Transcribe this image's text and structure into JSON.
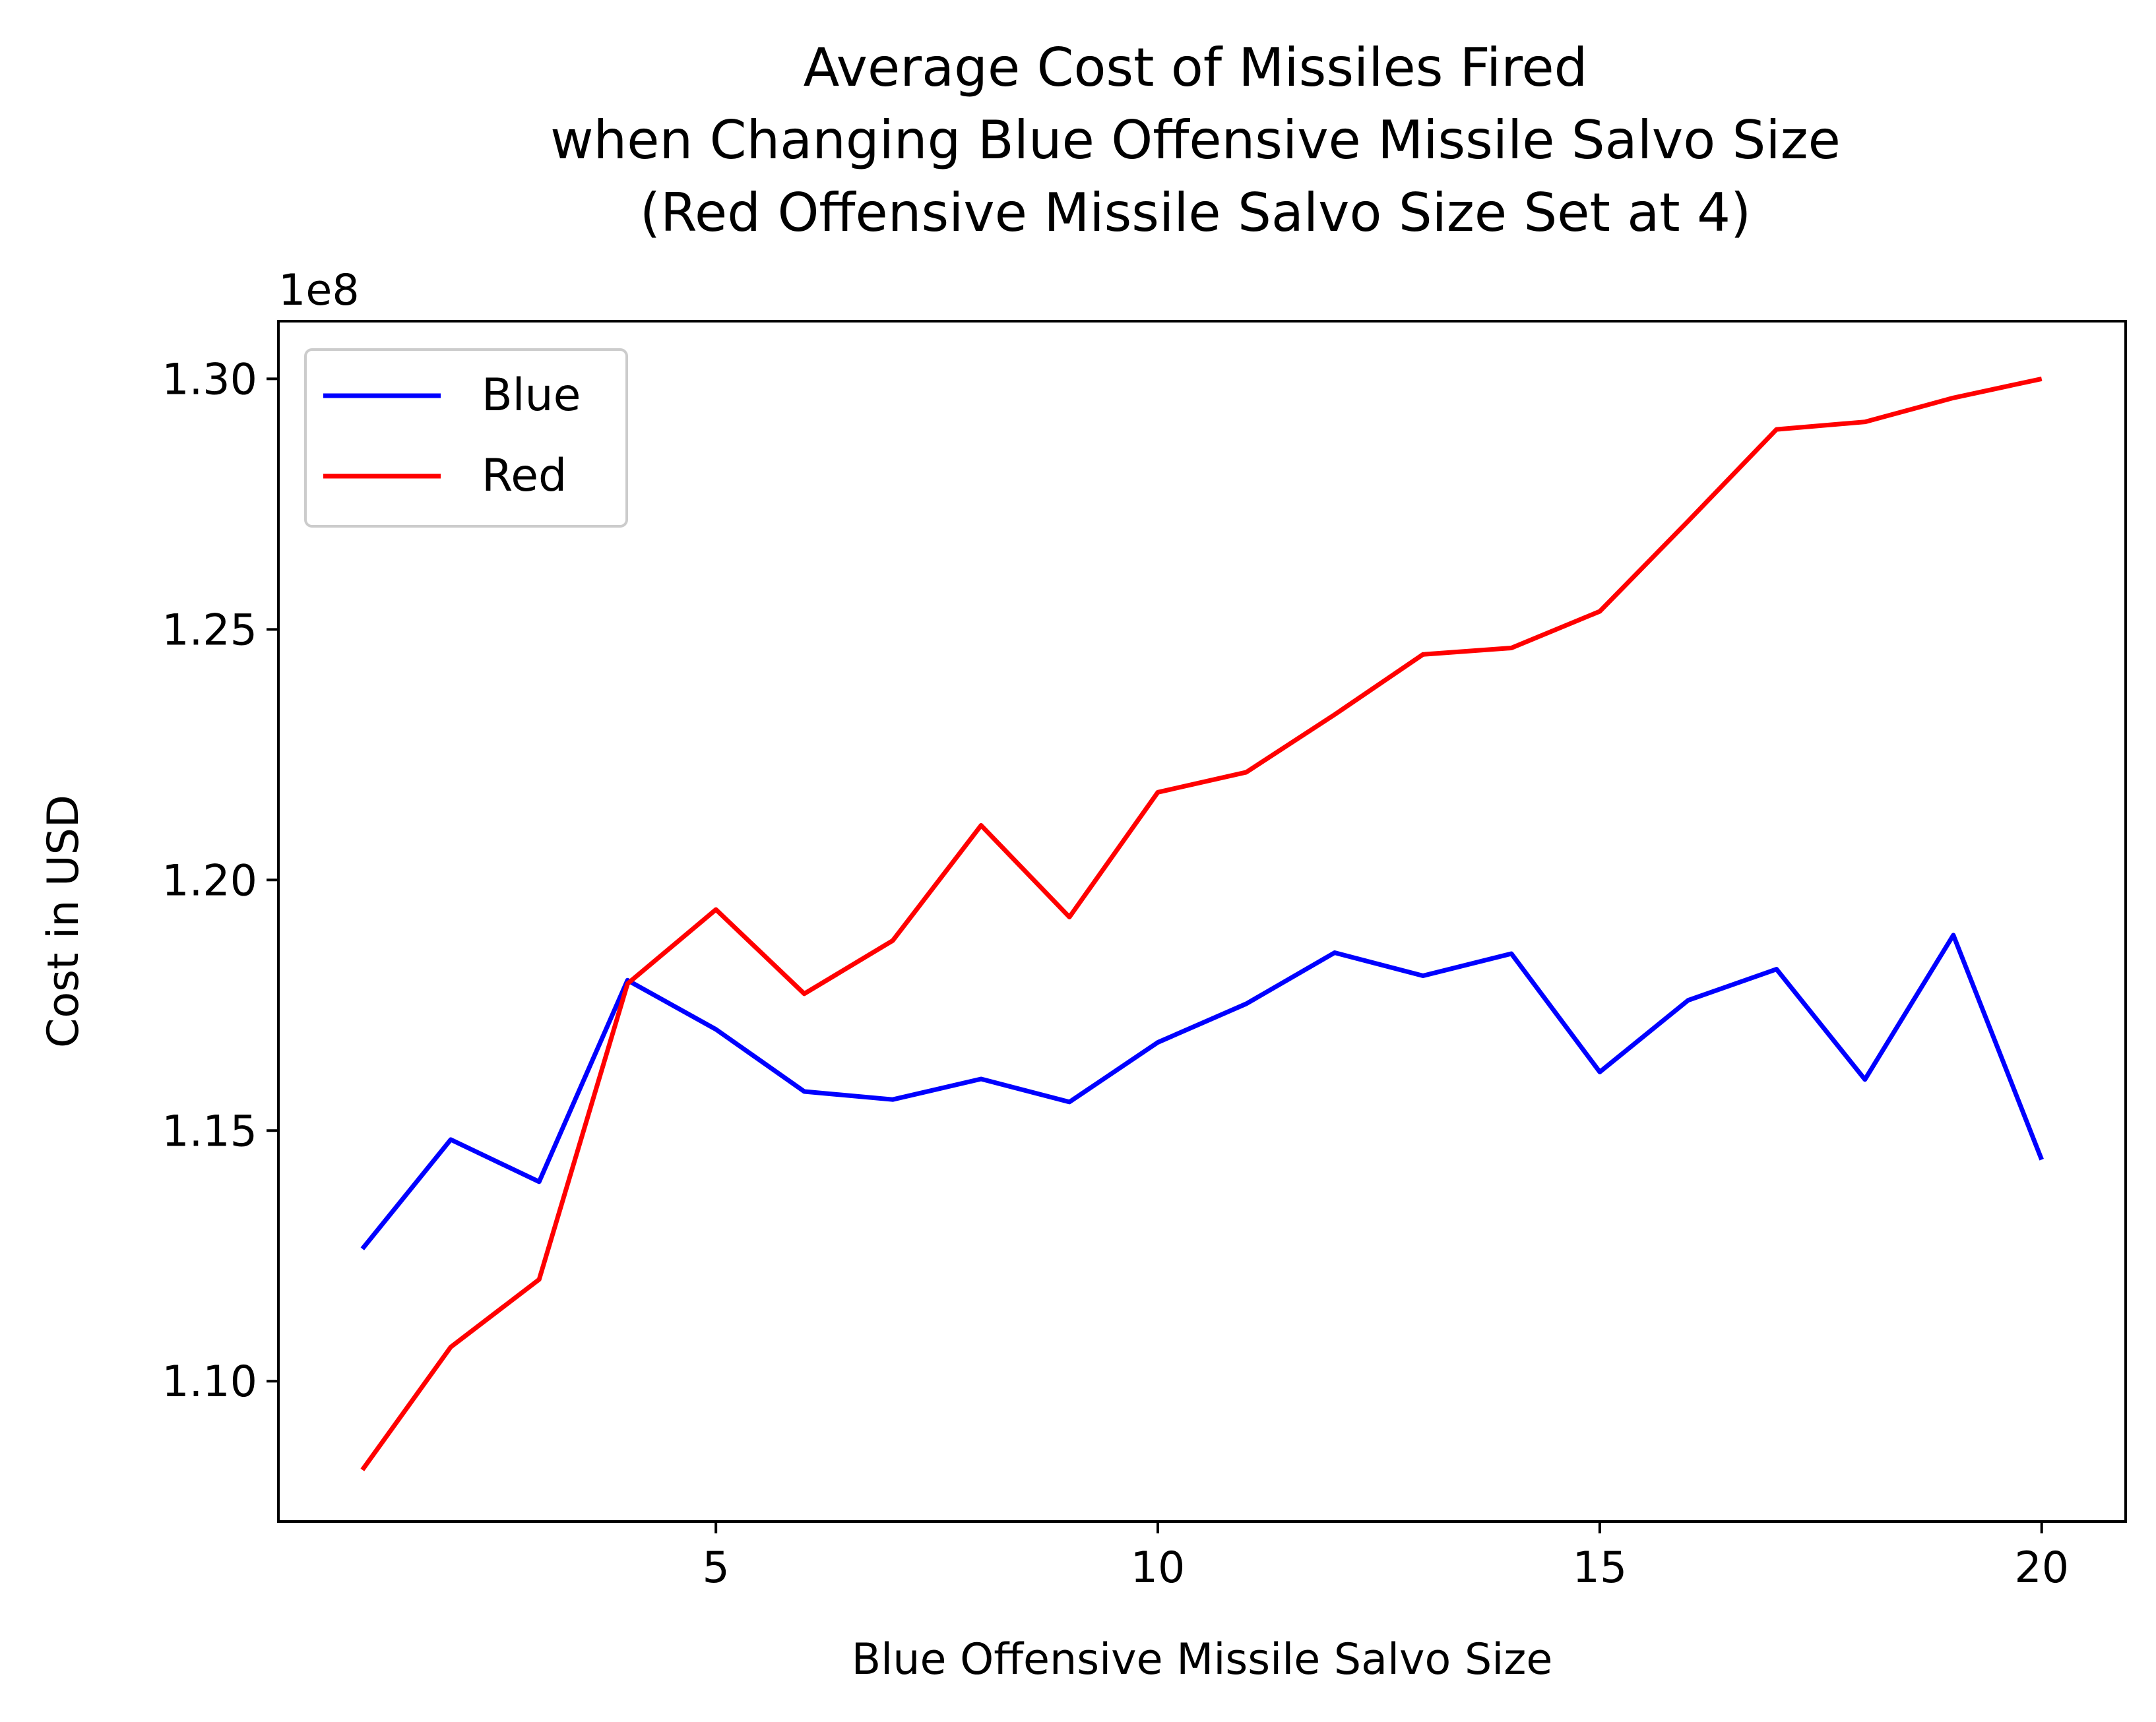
{
  "chart_data": {
    "type": "line",
    "title_lines": [
      "Average Cost of Missiles Fired",
      "when Changing Blue Offensive Missile Salvo Size",
      "(Red Offensive Missile Salvo Size Set at 4)"
    ],
    "xlabel": "Blue Offensive Missile Salvo Size",
    "ylabel": "Cost in USD",
    "y_offset_label": "1e8",
    "x": [
      1,
      2,
      3,
      4,
      5,
      6,
      7,
      8,
      9,
      10,
      11,
      12,
      13,
      14,
      15,
      16,
      17,
      18,
      19,
      20
    ],
    "series": [
      {
        "name": "Blue",
        "color": "#0000ff",
        "values": [
          1.1264,
          1.1482,
          1.1398,
          1.18,
          1.1702,
          1.1578,
          1.1562,
          1.1603,
          1.1557,
          1.1676,
          1.1753,
          1.1855,
          1.1809,
          1.1853,
          1.1617,
          1.176,
          1.1822,
          1.1602,
          1.189,
          1.1442
        ]
      },
      {
        "name": "Red",
        "color": "#ff0000",
        "values": [
          1.0823,
          1.1068,
          1.1203,
          1.1793,
          1.1941,
          1.1773,
          1.1879,
          1.2109,
          1.1926,
          1.2175,
          1.2215,
          1.233,
          1.245,
          1.2463,
          1.2536,
          1.2716,
          1.2899,
          1.2914,
          1.2962,
          1.3
        ]
      }
    ],
    "xlim": [
      0.05,
      20.95
    ],
    "ylim": [
      1.072,
      1.3115
    ],
    "xticks": [
      5,
      10,
      15,
      20
    ],
    "xtick_labels": [
      "5",
      "10",
      "15",
      "20"
    ],
    "yticks": [
      1.1,
      1.15,
      1.2,
      1.25,
      1.3
    ],
    "ytick_labels": [
      "1.10",
      "1.15",
      "1.20",
      "1.25",
      "1.30"
    ],
    "grid": false,
    "legend_position": "upper-left"
  }
}
